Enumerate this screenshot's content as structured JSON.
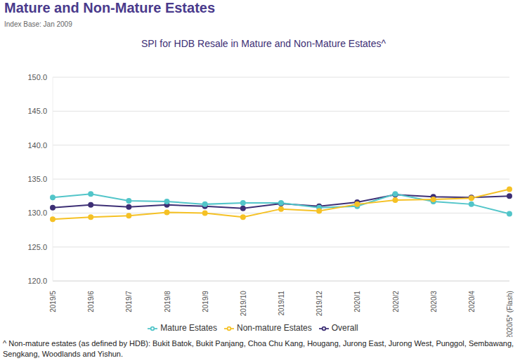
{
  "chart_data": {
    "type": "line",
    "heading": "Mature and Non-Mature Estates",
    "subtitle": "Index Base: Jan 2009",
    "title": "SPI for HDB Resale in Mature and Non-Mature Estates^",
    "annotations": [
      "^ Non-mature estates (as defined by HDB): Bukit Batok, Bukit Panjang, Choa Chu Kang, Hougang, Jurong East, Jurong West, Punggol, Sembawang, Sengkang, Woodlands and Yishun."
    ],
    "categories": [
      "2019/5",
      "2019/6",
      "2019/7",
      "2019/8",
      "2019/9",
      "2019/10",
      "2019/11",
      "2019/12",
      "2020/1",
      "2020/2",
      "2020/3",
      "2020/4",
      "2020/5* (Flash)"
    ],
    "series": [
      {
        "name": "Overall",
        "color": "#3d2f75",
        "marker": "circle",
        "line_style": "solid",
        "values": [
          130.8,
          131.2,
          130.9,
          131.2,
          131.0,
          130.7,
          131.4,
          131.0,
          131.6,
          132.7,
          132.4,
          132.3,
          132.5
        ]
      },
      {
        "name": "Mature Estates",
        "color": "#52c5c9",
        "marker": "circle",
        "line_style": "solid",
        "values": [
          132.3,
          132.8,
          131.8,
          131.7,
          131.3,
          131.5,
          131.5,
          130.8,
          131.0,
          132.8,
          131.7,
          131.3,
          129.9
        ]
      },
      {
        "name": "Non-mature Estates",
        "color": "#f5c125",
        "marker": "circle",
        "line_style": "solid",
        "values": [
          129.1,
          129.4,
          129.6,
          130.1,
          130.0,
          129.4,
          130.6,
          130.3,
          131.3,
          131.9,
          132.0,
          132.2,
          133.5
        ]
      }
    ],
    "ylim": [
      120,
      150
    ],
    "yticks": [
      {
        "value": 120,
        "label": "120.0"
      },
      {
        "value": 125,
        "label": "125.0"
      },
      {
        "value": 130,
        "label": "130.0"
      },
      {
        "value": 135,
        "label": "135.0"
      },
      {
        "value": 140,
        "label": "140.0"
      },
      {
        "value": 145,
        "label": "145.0"
      },
      {
        "value": 150,
        "label": "150.0"
      }
    ],
    "grid": true,
    "legend": "bottom"
  }
}
